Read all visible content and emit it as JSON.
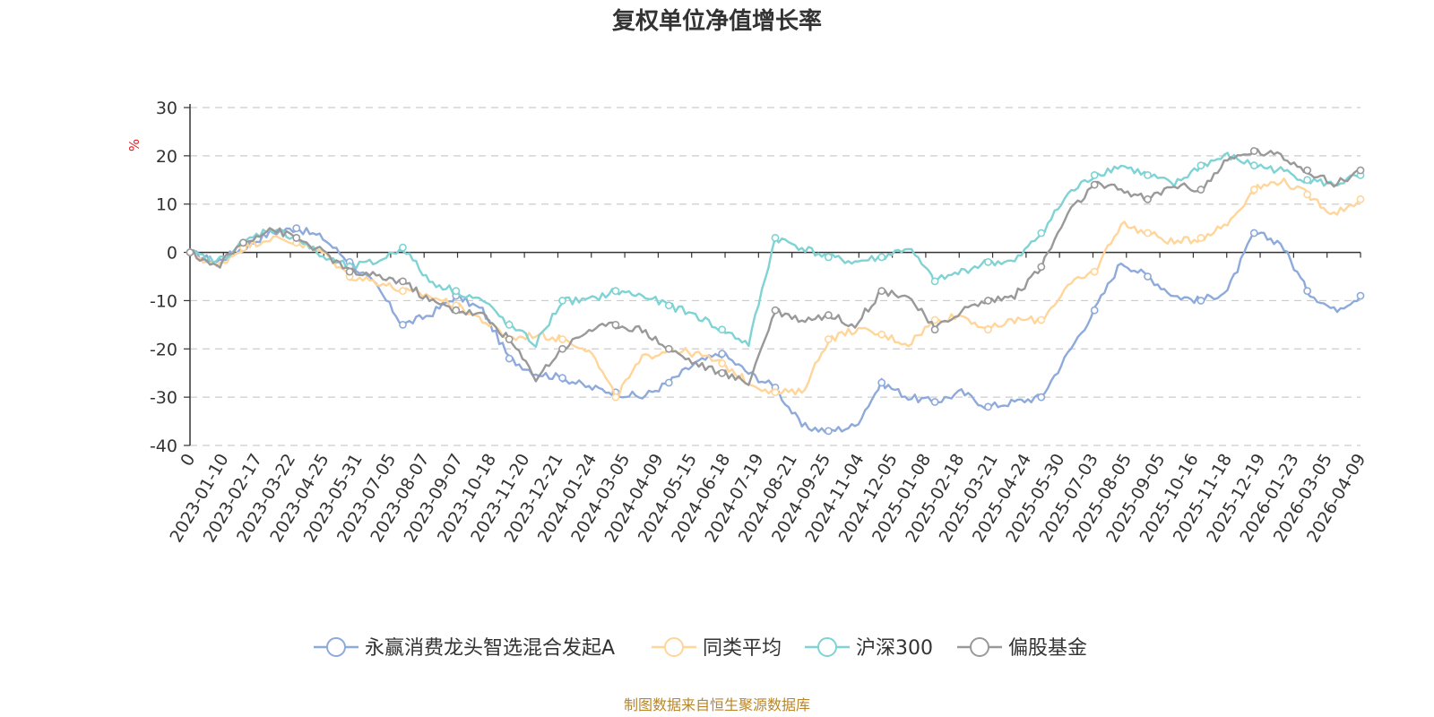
{
  "chart_data": {
    "type": "line",
    "title": "复权单位净值增长率",
    "ylabel": "%",
    "ylim": [
      -40,
      30
    ],
    "yticks": [
      30,
      20,
      10,
      0,
      -10,
      -20,
      -30,
      -40
    ],
    "xlabel": "",
    "x_origin_label": "0",
    "x_tick_labels": [
      "2023-01-10",
      "2023-02-17",
      "2023-03-22",
      "2023-04-25",
      "2023-05-31",
      "2023-07-05",
      "2023-08-07",
      "2023-09-07",
      "2023-10-18",
      "2023-11-20",
      "2023-12-21",
      "2024-01-24",
      "2024-03-05",
      "2024-04-09",
      "2024-05-15",
      "2024-06-18",
      "2024-07-19",
      "2024-08-21",
      "2024-09-25",
      "2024-11-04",
      "2024-12-05",
      "2025-01-08",
      "2025-02-18",
      "2025-03-21",
      "2025-04-24",
      "2025-05-30",
      "2025-07-03",
      "2025-08-05",
      "2025-09-05",
      "2025-10-16",
      "2025-11-18",
      "2025-12-19",
      "2026-01-23",
      "2026-03-05",
      "2026-04-09"
    ],
    "grid": true,
    "legend_position": "bottom",
    "series": [
      {
        "name": "永赢消费龙头智选混合发起A",
        "color": "#8eaadb",
        "values": [
          0,
          -2,
          1,
          4,
          5,
          3,
          -2,
          -7,
          -15,
          -13,
          -9,
          -12,
          -22,
          -25,
          -26,
          -28,
          -29,
          -30,
          -27,
          -23,
          -21,
          -25,
          -28,
          -36,
          -37,
          -36,
          -27,
          -30,
          -31,
          -29,
          -32,
          -31,
          -30,
          -21,
          -12,
          -2,
          -5,
          -9,
          -10,
          -8,
          4,
          2,
          -8,
          -12,
          -9
        ]
      },
      {
        "name": "同类平均",
        "color": "#ffd59a",
        "values": [
          0,
          -3,
          1,
          3,
          2,
          0,
          -5,
          -6,
          -8,
          -9,
          -11,
          -14,
          -18,
          -17,
          -18,
          -20,
          -30,
          -22,
          -20,
          -21,
          -23,
          -27,
          -29,
          -29,
          -18,
          -16,
          -17,
          -19,
          -14,
          -13,
          -16,
          -14,
          -14,
          -7,
          -4,
          6,
          4,
          2,
          3,
          6,
          13,
          15,
          12,
          8,
          11
        ]
      },
      {
        "name": "沪深300",
        "color": "#7fd3d4",
        "values": [
          0,
          -2,
          2,
          5,
          3,
          -1,
          -3,
          -2,
          1,
          -6,
          -8,
          -10,
          -15,
          -19,
          -10,
          -10,
          -8,
          -9,
          -11,
          -13,
          -16,
          -19,
          3,
          1,
          -1,
          -2,
          -1,
          1,
          -6,
          -4,
          -2,
          -2,
          4,
          12,
          16,
          18,
          16,
          14,
          18,
          20,
          18,
          17,
          15,
          14,
          16
        ]
      },
      {
        "name": "偏股基金",
        "color": "#999999",
        "values": [
          0,
          -3,
          2,
          5,
          3,
          0,
          -4,
          -5,
          -6,
          -10,
          -12,
          -13,
          -18,
          -26,
          -20,
          -16,
          -15,
          -16,
          -20,
          -23,
          -25,
          -27,
          -12,
          -14,
          -13,
          -15,
          -8,
          -9,
          -16,
          -12,
          -10,
          -9,
          -3,
          8,
          14,
          13,
          11,
          14,
          13,
          19,
          21,
          20,
          17,
          14,
          17
        ]
      }
    ]
  },
  "legend_items": [
    "永赢消费龙头智选混合发起A",
    "同类平均",
    "沪深300",
    "偏股基金"
  ],
  "source_text": "制图数据来自恒生聚源数据库"
}
